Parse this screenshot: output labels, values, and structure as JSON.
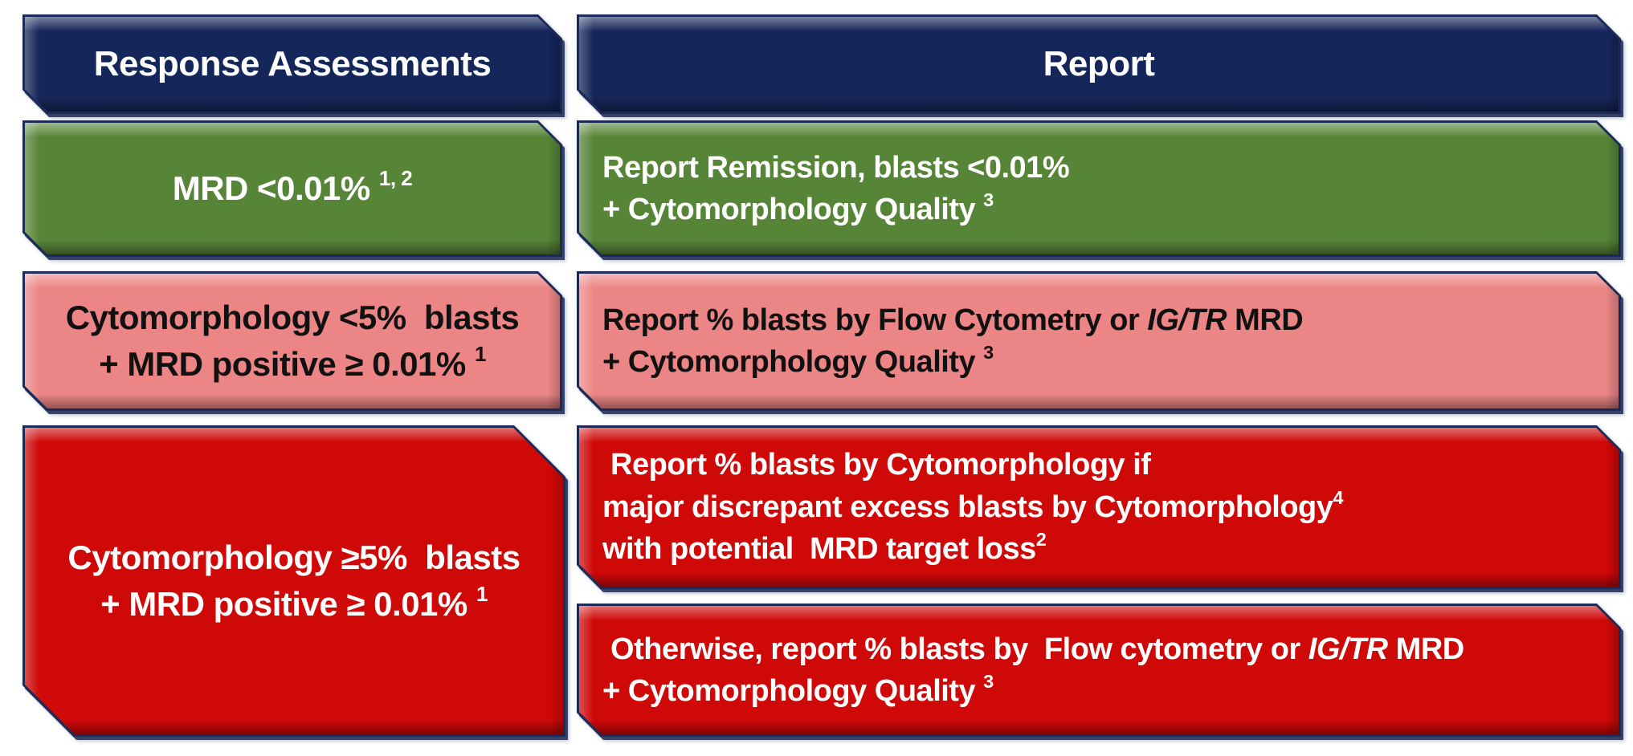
{
  "colors": {
    "navy": "#15265B",
    "green": "#578538",
    "pink": "#EC8686",
    "red": "#CF0808",
    "border": "#1B2A57",
    "text_light": "#FFFFFF",
    "text_dark": "#111111",
    "background": "#FFFFFF"
  },
  "columns": {
    "assessments": {
      "header": "Response Assessments"
    },
    "report": {
      "header": "Report"
    }
  },
  "rows": [
    {
      "status": "remission",
      "status_color": "#578538",
      "assessment": {
        "lines": [
          [
            {
              "t": "MRD <0.01% "
            },
            {
              "t": "1, 2",
              "sup": true
            }
          ]
        ]
      },
      "reports": [
        {
          "lines": [
            [
              {
                "t": "Report Remission, blasts <0.01%"
              }
            ],
            [
              {
                "t": "+ Cytomorphology Quality "
              },
              {
                "t": "3",
                "sup": true
              }
            ]
          ]
        }
      ]
    },
    {
      "status": "mrd-positive-low-blasts",
      "status_color": "#EC8686",
      "assessment": {
        "lines": [
          [
            {
              "t": "Cytomorphology <5%  blasts"
            }
          ],
          [
            {
              "t": "+ MRD positive ≥ 0.01% "
            },
            {
              "t": "1",
              "sup": true
            }
          ]
        ]
      },
      "reports": [
        {
          "lines": [
            [
              {
                "t": "Report % blasts by Flow Cytometry or "
              },
              {
                "t": "IG/TR",
                "italic": true
              },
              {
                "t": " MRD"
              }
            ],
            [
              {
                "t": "+ Cytomorphology Quality "
              },
              {
                "t": "3",
                "sup": true
              }
            ]
          ]
        }
      ]
    },
    {
      "status": "relapse-high-blasts",
      "status_color": "#CF0808",
      "assessment": {
        "lines": [
          [
            {
              "t": "Cytomorphology ≥5%  blasts"
            }
          ],
          [
            {
              "t": "+ MRD positive ≥ 0.01% "
            },
            {
              "t": "1",
              "sup": true
            }
          ]
        ]
      },
      "reports": [
        {
          "lines": [
            [
              {
                "t": " Report % blasts by Cytomorphology if"
              }
            ],
            [
              {
                "t": "major discrepant excess blasts by Cytomorphology"
              },
              {
                "t": "4",
                "sup": true
              }
            ],
            [
              {
                "t": "with potential  MRD target loss"
              },
              {
                "t": "2",
                "sup": true
              }
            ]
          ]
        },
        {
          "lines": [
            [
              {
                "t": " Otherwise, report % blasts by  Flow cytometry or "
              },
              {
                "t": "IG/TR",
                "italic": true
              },
              {
                "t": " MRD"
              }
            ],
            [
              {
                "t": "+ Cytomorphology Quality "
              },
              {
                "t": "3",
                "sup": true
              }
            ]
          ]
        }
      ]
    }
  ]
}
